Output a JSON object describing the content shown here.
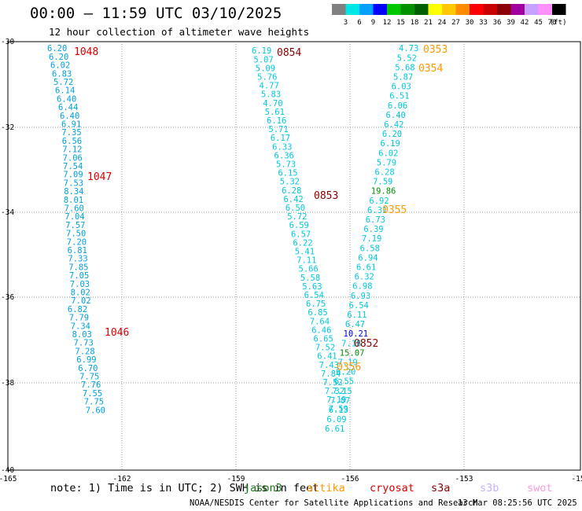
{
  "title": "00:00 – 11:59 UTC 03/10/2025",
  "subtitle": "12 hour collection of altimeter wave heights",
  "colorbar": {
    "unit": "(ft)",
    "colors": [
      "#808080",
      "#00e5e5",
      "#00a0ff",
      "#0000ff",
      "#00c800",
      "#009000",
      "#006000",
      "#ffff00",
      "#ffc800",
      "#ff8c00",
      "#ff0000",
      "#c80000",
      "#8b0000",
      "#a000a0",
      "#c8a0ff",
      "#ff90ff",
      "#000000"
    ],
    "labels": [
      "3",
      "6",
      "9",
      "12",
      "15",
      "18",
      "21",
      "24",
      "27",
      "30",
      "33",
      "36",
      "39",
      "42",
      "45",
      "70"
    ]
  },
  "axes": {
    "lon_labels": [
      "-165",
      "-162",
      "-159",
      "-156",
      "-153",
      "-15"
    ],
    "lat_labels": [
      "-30",
      "-32",
      "-34",
      "-36",
      "-38",
      "-40"
    ]
  },
  "note": "note: 1) Time is in UTC; 2) SWH is in feet",
  "legend": [
    {
      "name": "jason3",
      "color": "#1a7a1a"
    },
    {
      "name": "altika",
      "color": "#ff9900"
    },
    {
      "name": "cryosat",
      "color": "#dd0000"
    },
    {
      "name": "s3a",
      "color": "#8b0000"
    },
    {
      "name": "s3b",
      "color": "#c8b0ff"
    },
    {
      "name": "swot",
      "color": "#ff99dd"
    }
  ],
  "credit": "NOAA/NESDIS Center for Satellite Applications and Research",
  "timestamp": "13 Mar 08:25:56 UTC 2025",
  "time_labels": [
    {
      "text": "1048",
      "color": "#dd0000"
    },
    {
      "text": "1047",
      "color": "#dd0000"
    },
    {
      "text": "1046",
      "color": "#dd0000"
    },
    {
      "text": "0854",
      "color": "#8b0000"
    },
    {
      "text": "0853",
      "color": "#8b0000"
    },
    {
      "text": "0852",
      "color": "#8b0000"
    },
    {
      "text": "0353",
      "color": "#ff9900"
    },
    {
      "text": "0354",
      "color": "#ff9900"
    },
    {
      "text": "0355",
      "color": "#ff9900"
    },
    {
      "text": "0356",
      "color": "#ff9900"
    }
  ],
  "tracks": [
    {
      "color": "#00a0e0",
      "values": [
        "6.20",
        "6.20",
        "6.02",
        "6.83",
        "5.72",
        "6.14",
        "6.40",
        "6.44",
        "6.40",
        "6.91",
        "7.35",
        "6.56",
        "7.12",
        "7.06",
        "7.54",
        "7.09",
        "7.53",
        "8.34",
        "8.01",
        "7.60",
        "7.04",
        "7.57",
        "7.50",
        "7.20",
        "6.81",
        "7.33",
        "7.85",
        "7.05",
        "7.03",
        "8.02",
        "7.02",
        "6.82",
        "7.79",
        "7.34",
        "8.03",
        "7.73",
        "7.28",
        "6.99",
        "6.70",
        "7.75",
        "7.76",
        "7.55",
        "7.75",
        "7.60"
      ]
    },
    {
      "color": "#00c8e0",
      "values": [
        "6.19",
        "5.07",
        "5.09",
        "5.76",
        "4.77",
        "5.83",
        "4.70",
        "5.61",
        "6.16",
        "5.71",
        "6.17",
        "6.33",
        "6.36",
        "5.73",
        "6.15",
        "5.32",
        "6.28",
        "6.42",
        "6.50",
        "5.72",
        "6.59",
        "6.57",
        "6.22",
        "5.41",
        "7.11",
        "5.66",
        "5.58",
        "5.63",
        "6.54",
        "6.75",
        "6.85",
        "7.64",
        "6.46",
        "6.65",
        "7.52",
        "6.41",
        "7.43",
        "7.84",
        "7.52",
        "7.32",
        "7.19",
        "7.59"
      ]
    },
    {
      "color": "#00c8e0",
      "values": [
        "4.73",
        "5.52",
        "5.68",
        "5.87",
        "6.03",
        "6.51",
        "6.06",
        "6.40",
        "6.42",
        "6.20",
        "6.19",
        "6.02",
        "5.79",
        "6.28",
        "7.59",
        "19.86",
        "6.92",
        "6.31",
        "6.73",
        "6.39",
        "7.19",
        "6.58",
        "6.94",
        "6.61",
        "6.32",
        "6.98",
        "6.93",
        "6.54",
        "6.11",
        "6.47",
        "10.21",
        "7.18",
        "15.07",
        "7.19",
        "6.20",
        "6.55",
        "7.15",
        "7.07",
        "6.13",
        "6.09",
        "6.61"
      ]
    }
  ]
}
